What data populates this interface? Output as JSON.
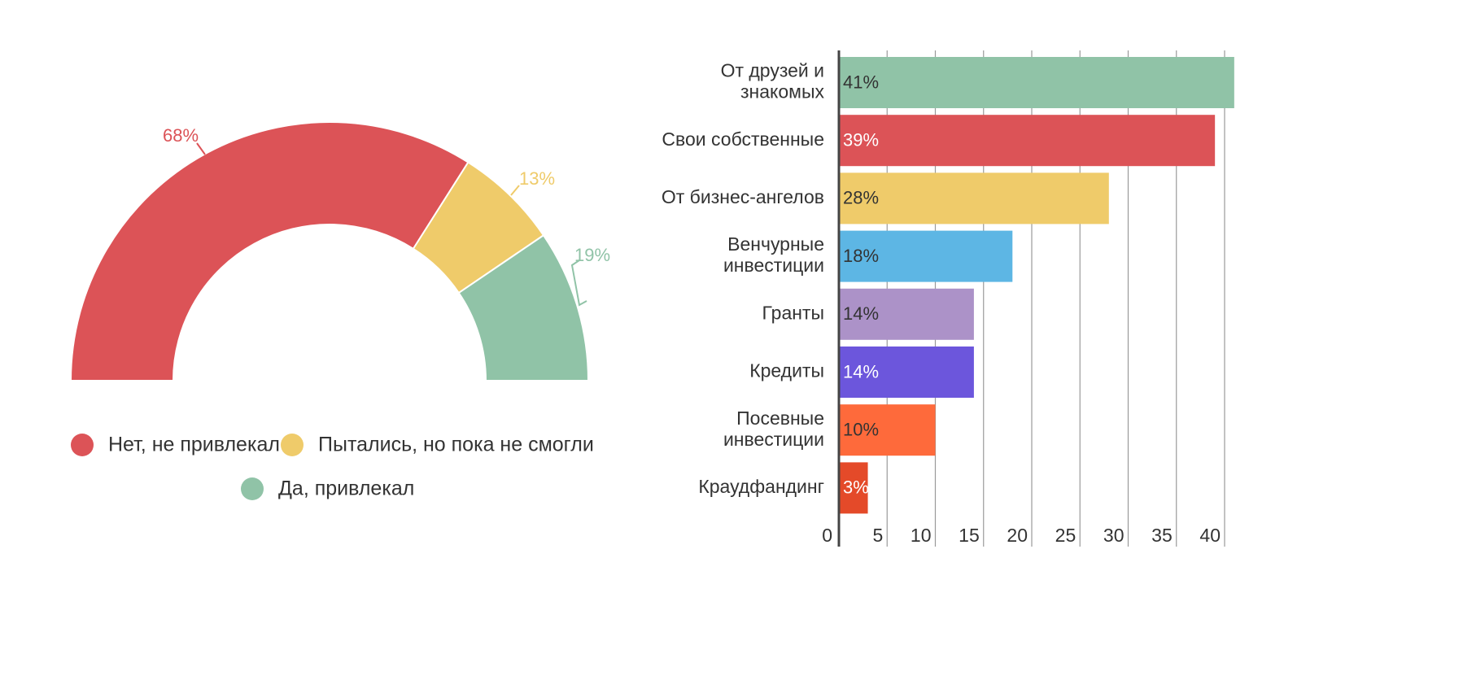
{
  "chart_data": [
    {
      "type": "pie",
      "variant": "semi-donut",
      "title": "",
      "slices": [
        {
          "label": "Нет, не привлекал",
          "value": 68,
          "display": "68%",
          "color": "#dc5357"
        },
        {
          "label": "Пытались, но пока не смогли",
          "value": 13,
          "display": "13%",
          "color": "#efcb6a"
        },
        {
          "label": "Да, привлекал",
          "value": 19,
          "display": "19%",
          "color": "#90c3a7"
        }
      ],
      "legend_position": "bottom"
    },
    {
      "type": "bar",
      "orientation": "horizontal",
      "title": "",
      "xlabel": "",
      "ylabel": "",
      "xlim": [
        0,
        42
      ],
      "ticks": [
        "0",
        "5",
        "10",
        "15",
        "20",
        "25",
        "30",
        "35",
        "40"
      ],
      "tick_values": [
        0,
        5,
        10,
        15,
        20,
        25,
        30,
        35,
        40
      ],
      "grid": true,
      "categories": [
        {
          "lines": [
            "От друзей и",
            "знакомых"
          ],
          "value": 41,
          "display": "41%",
          "color": "#90c3a7",
          "label_color": "#333333"
        },
        {
          "lines": [
            "Свои собственные"
          ],
          "value": 39,
          "display": "39%",
          "color": "#dc5357",
          "label_color": "#ffffff"
        },
        {
          "lines": [
            "От бизнес-ангелов"
          ],
          "value": 28,
          "display": "28%",
          "color": "#efcb6a",
          "label_color": "#333333"
        },
        {
          "lines": [
            "Венчурные",
            "инвестиции"
          ],
          "value": 18,
          "display": "18%",
          "color": "#5db6e4",
          "label_color": "#333333"
        },
        {
          "lines": [
            "Гранты"
          ],
          "value": 14,
          "display": "14%",
          "color": "#ac92c8",
          "label_color": "#333333"
        },
        {
          "lines": [
            "Кредиты"
          ],
          "value": 14,
          "display": "14%",
          "color": "#6c56dc",
          "label_color": "#ffffff"
        },
        {
          "lines": [
            "Посевные",
            "инвестиции"
          ],
          "value": 10,
          "display": "10%",
          "color": "#fe6a3b",
          "label_color": "#333333"
        },
        {
          "lines": [
            "Краудфандинг"
          ],
          "value": 3,
          "display": "3%",
          "color": "#e44a29",
          "label_color": "#ffffff"
        }
      ]
    }
  ]
}
